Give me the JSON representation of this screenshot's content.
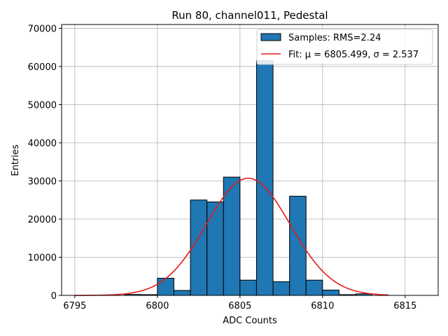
{
  "chart_data": {
    "type": "bar",
    "title": "Run 80, channel011, Pedestal",
    "xlabel": "ADC Counts",
    "ylabel": "Entries",
    "xlim": [
      6794.2,
      6817
    ],
    "ylim": [
      0,
      71000
    ],
    "grid": true,
    "legend_position": "top-right",
    "xticks": [
      6795,
      6800,
      6805,
      6810,
      6815
    ],
    "yticks": [
      0,
      10000,
      20000,
      30000,
      40000,
      50000,
      60000,
      70000
    ],
    "bin_width": 1,
    "bins": [
      {
        "left": 6798,
        "value": 250
      },
      {
        "left": 6799,
        "value": 200
      },
      {
        "left": 6800,
        "value": 4500
      },
      {
        "left": 6801,
        "value": 1300
      },
      {
        "left": 6802,
        "value": 25000
      },
      {
        "left": 6803,
        "value": 24500
      },
      {
        "left": 6804,
        "value": 31000
      },
      {
        "left": 6805,
        "value": 4000
      },
      {
        "left": 6806,
        "value": 61500
      },
      {
        "left": 6807,
        "value": 3600
      },
      {
        "left": 6808,
        "value": 26000
      },
      {
        "left": 6809,
        "value": 4000
      },
      {
        "left": 6810,
        "value": 1400
      },
      {
        "left": 6811,
        "value": 200
      },
      {
        "left": 6812,
        "value": 400
      }
    ],
    "fit": {
      "mu": 6805.499,
      "sigma": 2.537,
      "amplitude": 30700,
      "x_range": [
        6795,
        6814
      ]
    },
    "legend": {
      "samples_label": "Samples: RMS=2.24",
      "fit_label": "Fit: μ = 6805.499, σ = 2.537"
    },
    "colors": {
      "bar": "#1f77b4",
      "fit": "#e41a1c"
    }
  }
}
